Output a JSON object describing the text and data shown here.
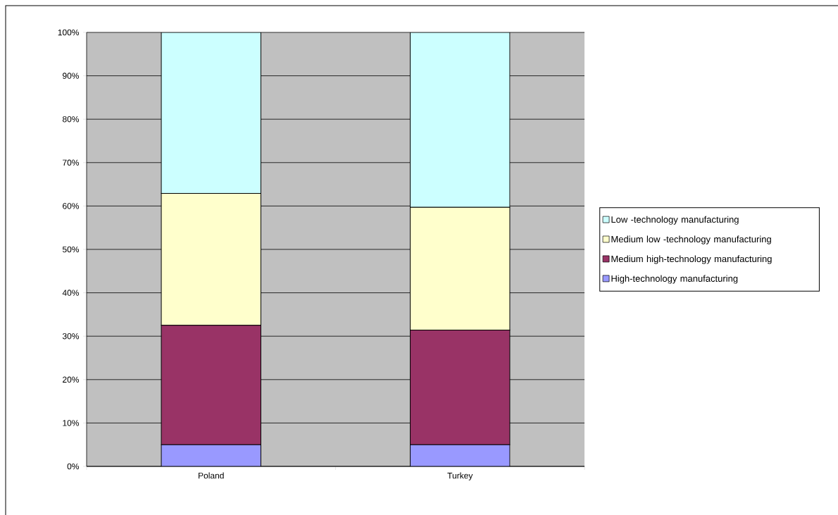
{
  "chart_data": {
    "type": "bar",
    "stacked": true,
    "categories": [
      "Poland",
      "Turkey"
    ],
    "series": [
      {
        "name": "High-technology manufacturing",
        "color": "#9999ff",
        "values": [
          5.0,
          5.0
        ]
      },
      {
        "name": "Medium high-technology manufacturing",
        "color": "#993366",
        "values": [
          27.5,
          26.4
        ]
      },
      {
        "name": "Medium low -technology manufacturing",
        "color": "#ffffcc",
        "values": [
          30.4,
          28.3
        ]
      },
      {
        "name": "Low -technology manufacturing",
        "color": "#ccffff",
        "values": [
          37.1,
          40.3
        ]
      }
    ],
    "ylim": [
      0,
      100
    ],
    "yticks": [
      {
        "value": 0,
        "label": "0%"
      },
      {
        "value": 10,
        "label": "10%"
      },
      {
        "value": 20,
        "label": "20%"
      },
      {
        "value": 30,
        "label": "30%"
      },
      {
        "value": 40,
        "label": "40%"
      },
      {
        "value": 50,
        "label": "50%"
      },
      {
        "value": 60,
        "label": "60%"
      },
      {
        "value": 70,
        "label": "70%"
      },
      {
        "value": 80,
        "label": "80%"
      },
      {
        "value": 90,
        "label": "90%"
      },
      {
        "value": 100,
        "label": "100%"
      }
    ],
    "grid": "y",
    "legend": "right"
  }
}
